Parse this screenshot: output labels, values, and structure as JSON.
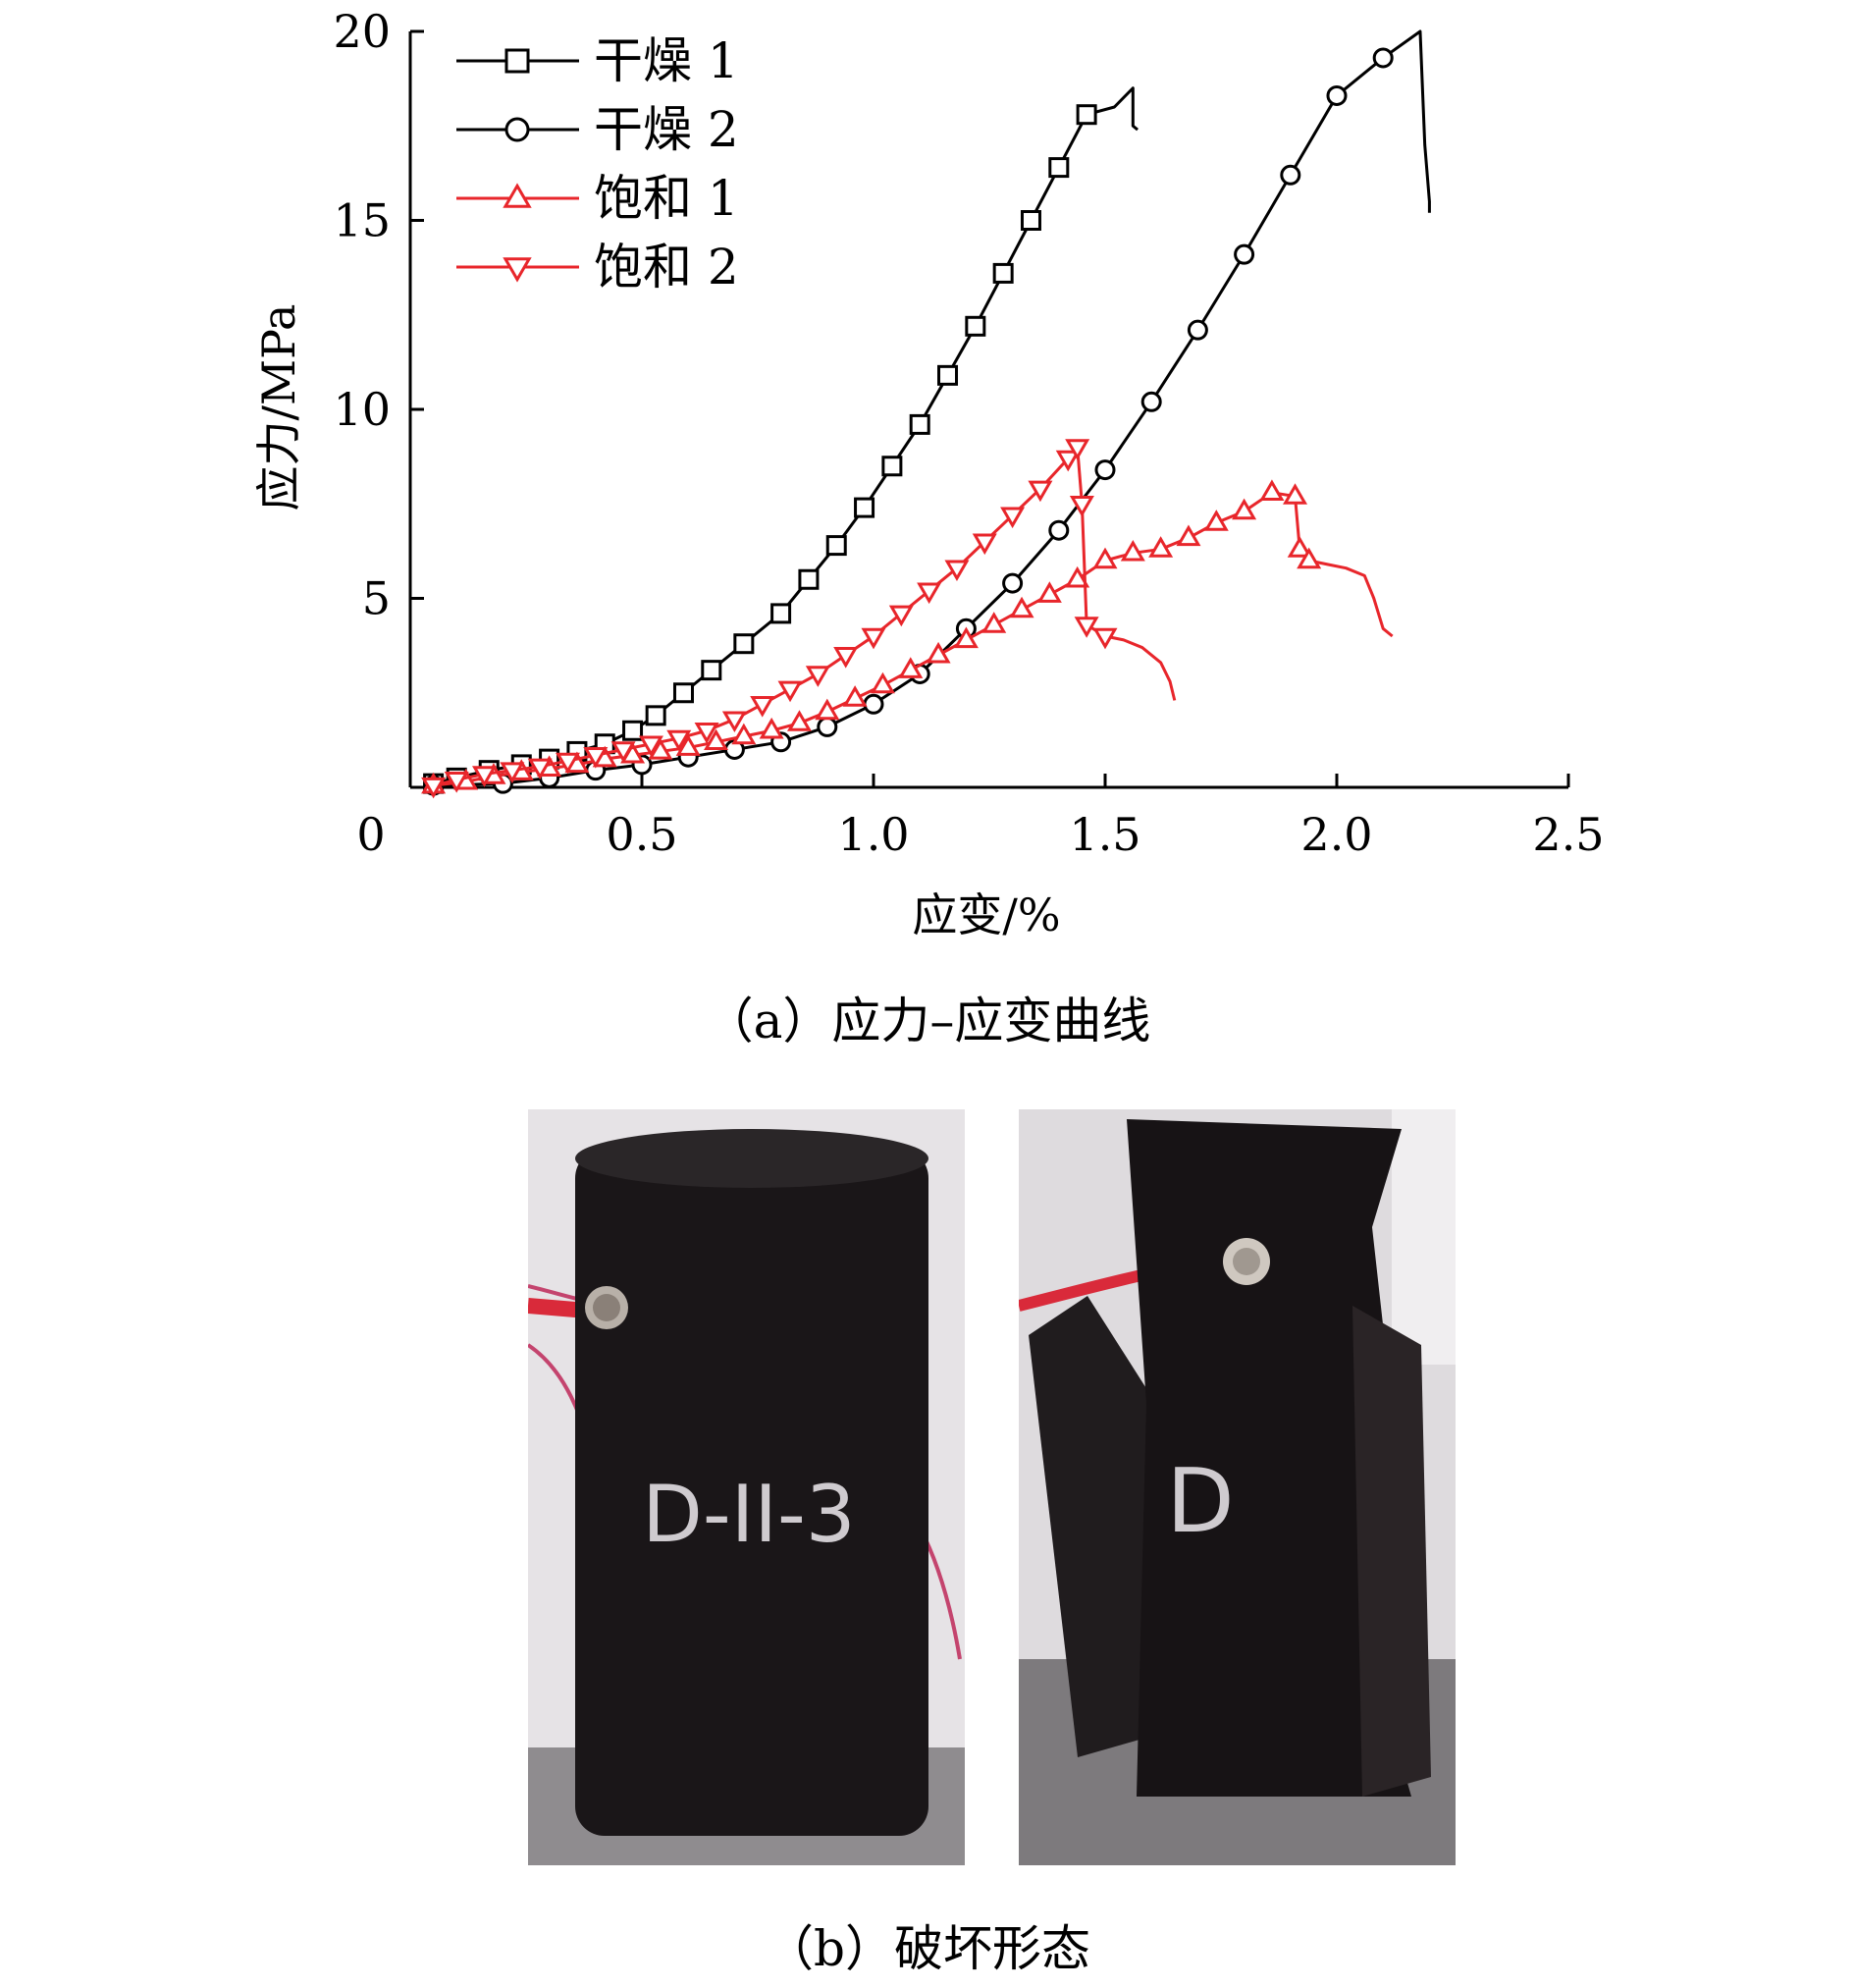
{
  "chart_data": {
    "type": "line",
    "title": "",
    "xlabel": "应变/%",
    "ylabel": "应力/MPa",
    "xlim": [
      0,
      2.5
    ],
    "ylim": [
      0,
      20
    ],
    "xticks": [
      "0",
      "0.5",
      "1.0",
      "1.5",
      "2.0",
      "2.5"
    ],
    "yticks": [
      "5",
      "10",
      "15",
      "20"
    ],
    "xtick_values": [
      0,
      0.5,
      1.0,
      1.5,
      2.0,
      2.5
    ],
    "ytick_values": [
      5,
      10,
      15,
      20
    ],
    "grid": false,
    "legend_position": "top-left",
    "series": [
      {
        "name": "干燥 1",
        "color": "#000000",
        "marker": "square",
        "x": [
          0.05,
          0.1,
          0.17,
          0.24,
          0.3,
          0.36,
          0.42,
          0.48,
          0.53,
          0.59,
          0.65,
          0.72,
          0.8,
          0.86,
          0.92,
          0.98,
          1.04,
          1.1,
          1.16,
          1.22,
          1.28,
          1.34,
          1.4,
          1.46,
          1.52,
          1.56,
          1.56,
          1.57
        ],
        "y": [
          0.1,
          0.25,
          0.45,
          0.6,
          0.75,
          0.95,
          1.15,
          1.5,
          1.9,
          2.5,
          3.1,
          3.8,
          4.6,
          5.5,
          6.4,
          7.4,
          8.5,
          9.6,
          10.9,
          12.2,
          13.6,
          15.0,
          16.4,
          17.8,
          18.0,
          18.5,
          17.5,
          17.4
        ],
        "marker_count": 24
      },
      {
        "name": "干燥 2",
        "color": "#000000",
        "marker": "circle",
        "x": [
          0.05,
          0.2,
          0.3,
          0.4,
          0.5,
          0.6,
          0.7,
          0.8,
          0.9,
          1.0,
          1.1,
          1.2,
          1.3,
          1.4,
          1.5,
          1.6,
          1.7,
          1.8,
          1.9,
          2.0,
          2.1,
          2.18,
          2.19,
          2.2,
          2.2
        ],
        "y": [
          0.05,
          0.1,
          0.25,
          0.45,
          0.6,
          0.8,
          1.0,
          1.2,
          1.6,
          2.2,
          3.0,
          4.2,
          5.4,
          6.8,
          8.4,
          10.2,
          12.1,
          14.1,
          16.2,
          18.3,
          19.3,
          20.0,
          17.0,
          15.5,
          15.2
        ],
        "marker_count": 21
      },
      {
        "name": "饱和 1",
        "color": "#e8262b",
        "marker": "triangle-up",
        "x": [
          0.05,
          0.12,
          0.18,
          0.24,
          0.3,
          0.36,
          0.42,
          0.48,
          0.54,
          0.6,
          0.66,
          0.72,
          0.78,
          0.84,
          0.9,
          0.96,
          1.02,
          1.08,
          1.14,
          1.2,
          1.26,
          1.32,
          1.38,
          1.44,
          1.5,
          1.56,
          1.62,
          1.68,
          1.74,
          1.8,
          1.86,
          1.91,
          1.92,
          1.94,
          1.98,
          2.02,
          2.06,
          2.08,
          2.1,
          2.12
        ],
        "y": [
          0.05,
          0.15,
          0.3,
          0.4,
          0.5,
          0.6,
          0.75,
          0.85,
          0.95,
          1.05,
          1.2,
          1.35,
          1.5,
          1.7,
          2.0,
          2.35,
          2.7,
          3.1,
          3.5,
          3.9,
          4.3,
          4.7,
          5.1,
          5.5,
          6.0,
          6.2,
          6.3,
          6.6,
          7.0,
          7.3,
          7.8,
          7.7,
          6.3,
          6.0,
          5.9,
          5.8,
          5.6,
          5.0,
          4.2,
          4.0
        ],
        "marker_count": 34
      },
      {
        "name": "饱和 2",
        "color": "#e8262b",
        "marker": "triangle-down",
        "x": [
          0.05,
          0.1,
          0.16,
          0.22,
          0.28,
          0.34,
          0.4,
          0.46,
          0.52,
          0.58,
          0.64,
          0.7,
          0.76,
          0.82,
          0.88,
          0.94,
          1.0,
          1.06,
          1.12,
          1.18,
          1.24,
          1.3,
          1.36,
          1.42,
          1.44,
          1.45,
          1.46,
          1.5,
          1.54,
          1.58,
          1.62,
          1.64,
          1.65
        ],
        "y": [
          0.05,
          0.2,
          0.35,
          0.45,
          0.55,
          0.7,
          0.85,
          1.0,
          1.15,
          1.3,
          1.5,
          1.8,
          2.2,
          2.6,
          3.0,
          3.5,
          4.0,
          4.6,
          5.2,
          5.8,
          6.5,
          7.2,
          7.9,
          8.7,
          9.0,
          7.5,
          4.3,
          4.0,
          3.9,
          3.7,
          3.3,
          2.8,
          2.3
        ],
        "marker_count": 28
      }
    ]
  },
  "captions": {
    "a": "（a）应力–应变曲线",
    "b": "（b）破坏形态"
  },
  "photos": {
    "left_label": "D-II-3",
    "right_label": "D"
  }
}
